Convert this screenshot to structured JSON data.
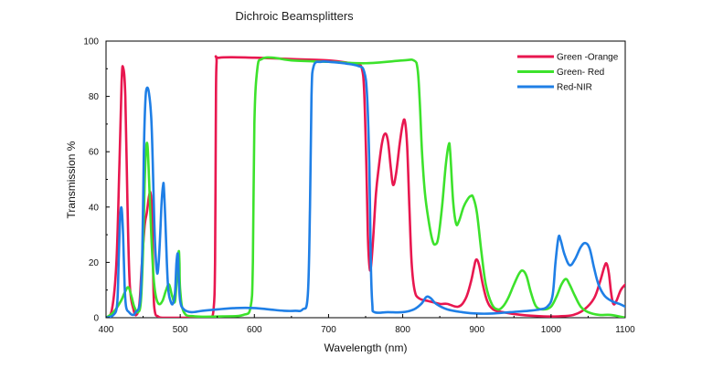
{
  "chart_data": {
    "type": "line",
    "title": "Dichroic Beamsplitters",
    "xlabel": "Wavelength (nm)",
    "ylabel": "Transmission %",
    "xlim": [
      400,
      1100
    ],
    "ylim": [
      0,
      100
    ],
    "xticks": [
      400,
      500,
      600,
      700,
      800,
      900,
      1000,
      1100
    ],
    "yticks": [
      0,
      20,
      40,
      60,
      80,
      100
    ],
    "grid": false,
    "legend_position": "top-right",
    "series": [
      {
        "name": "Green -Orange",
        "color": "#e8174f",
        "points": [
          [
            400,
            0
          ],
          [
            408,
            3
          ],
          [
            414,
            20
          ],
          [
            418,
            55
          ],
          [
            421,
            85
          ],
          [
            423,
            90.5
          ],
          [
            426,
            80
          ],
          [
            429,
            40
          ],
          [
            432,
            12
          ],
          [
            437,
            3
          ],
          [
            441,
            1
          ],
          [
            445,
            5
          ],
          [
            448,
            18
          ],
          [
            452,
            33
          ],
          [
            455,
            38
          ],
          [
            458,
            44
          ],
          [
            460,
            45
          ],
          [
            462,
            38
          ],
          [
            464,
            10
          ],
          [
            466,
            2
          ],
          [
            470,
            0.5
          ],
          [
            476,
            0
          ],
          [
            500,
            0
          ],
          [
            530,
            0
          ],
          [
            540,
            0
          ],
          [
            545,
            3
          ],
          [
            547,
            20
          ],
          [
            548,
            70
          ],
          [
            549,
            92
          ],
          [
            553,
            94
          ],
          [
            600,
            94
          ],
          [
            650,
            93.5
          ],
          [
            700,
            93
          ],
          [
            730,
            92
          ],
          [
            740,
            91.5
          ],
          [
            745,
            90
          ],
          [
            748,
            82
          ],
          [
            751,
            55
          ],
          [
            753,
            30
          ],
          [
            755,
            19
          ],
          [
            757,
            18
          ],
          [
            760,
            28
          ],
          [
            764,
            45
          ],
          [
            768,
            55
          ],
          [
            772,
            63
          ],
          [
            776,
            66.5
          ],
          [
            780,
            64
          ],
          [
            784,
            54
          ],
          [
            787,
            48
          ],
          [
            791,
            52
          ],
          [
            796,
            63
          ],
          [
            800,
            70
          ],
          [
            803,
            71
          ],
          [
            806,
            62
          ],
          [
            809,
            40
          ],
          [
            812,
            20
          ],
          [
            816,
            10
          ],
          [
            822,
            7
          ],
          [
            835,
            6
          ],
          [
            850,
            5
          ],
          [
            860,
            5
          ],
          [
            875,
            4
          ],
          [
            885,
            7
          ],
          [
            892,
            13
          ],
          [
            896,
            18
          ],
          [
            899,
            21
          ],
          [
            903,
            19
          ],
          [
            908,
            12
          ],
          [
            914,
            6
          ],
          [
            922,
            3
          ],
          [
            935,
            2
          ],
          [
            960,
            1
          ],
          [
            990,
            0.5
          ],
          [
            1010,
            0.5
          ],
          [
            1030,
            1
          ],
          [
            1045,
            3
          ],
          [
            1058,
            7
          ],
          [
            1066,
            13
          ],
          [
            1072,
            18.5
          ],
          [
            1075,
            19.5
          ],
          [
            1078,
            16
          ],
          [
            1081,
            9
          ],
          [
            1084,
            5
          ],
          [
            1088,
            6
          ],
          [
            1094,
            10
          ],
          [
            1100,
            12
          ]
        ]
      },
      {
        "name": "Green- Red",
        "color": "#3de22c",
        "points": [
          [
            400,
            0
          ],
          [
            410,
            2
          ],
          [
            420,
            6
          ],
          [
            425,
            9
          ],
          [
            430,
            11
          ],
          [
            434,
            8
          ],
          [
            438,
            4
          ],
          [
            443,
            2
          ],
          [
            447,
            6
          ],
          [
            450,
            25
          ],
          [
            452,
            48
          ],
          [
            454,
            61
          ],
          [
            456,
            62
          ],
          [
            458,
            50
          ],
          [
            461,
            30
          ],
          [
            464,
            15
          ],
          [
            467,
            8
          ],
          [
            471,
            5
          ],
          [
            476,
            6
          ],
          [
            481,
            10
          ],
          [
            485,
            12
          ],
          [
            489,
            8
          ],
          [
            493,
            6
          ],
          [
            496,
            17
          ],
          [
            498,
            24
          ],
          [
            499,
            20
          ],
          [
            500,
            10
          ],
          [
            505,
            2
          ],
          [
            520,
            0.5
          ],
          [
            560,
            0.5
          ],
          [
            585,
            1
          ],
          [
            595,
            4
          ],
          [
            598,
            20
          ],
          [
            600,
            70
          ],
          [
            604,
            90
          ],
          [
            610,
            93.5
          ],
          [
            625,
            94
          ],
          [
            650,
            93
          ],
          [
            700,
            92.5
          ],
          [
            750,
            92
          ],
          [
            800,
            93
          ],
          [
            815,
            93
          ],
          [
            820,
            90
          ],
          [
            823,
            78
          ],
          [
            826,
            60
          ],
          [
            830,
            45
          ],
          [
            835,
            35
          ],
          [
            840,
            28
          ],
          [
            844,
            26.5
          ],
          [
            848,
            29
          ],
          [
            853,
            40
          ],
          [
            858,
            55
          ],
          [
            862,
            62.5
          ],
          [
            864,
            60
          ],
          [
            868,
            42
          ],
          [
            872,
            34
          ],
          [
            876,
            35
          ],
          [
            882,
            40
          ],
          [
            888,
            43
          ],
          [
            892,
            44
          ],
          [
            895,
            43.5
          ],
          [
            900,
            38
          ],
          [
            906,
            24
          ],
          [
            912,
            12
          ],
          [
            920,
            5
          ],
          [
            928,
            3
          ],
          [
            935,
            4
          ],
          [
            942,
            7
          ],
          [
            950,
            12
          ],
          [
            957,
            16
          ],
          [
            962,
            17
          ],
          [
            967,
            15
          ],
          [
            973,
            9
          ],
          [
            980,
            4
          ],
          [
            990,
            3
          ],
          [
            1000,
            4
          ],
          [
            1008,
            8
          ],
          [
            1014,
            12
          ],
          [
            1020,
            14
          ],
          [
            1025,
            12
          ],
          [
            1032,
            8
          ],
          [
            1040,
            4
          ],
          [
            1050,
            2
          ],
          [
            1065,
            1
          ],
          [
            1080,
            1
          ],
          [
            1100,
            0
          ]
        ]
      },
      {
        "name": "Red-NIR",
        "color": "#1f7fe6",
        "points": [
          [
            400,
            0
          ],
          [
            410,
            1
          ],
          [
            415,
            5
          ],
          [
            417,
            20
          ],
          [
            419,
            36
          ],
          [
            421,
            39.5
          ],
          [
            423,
            30
          ],
          [
            425,
            12
          ],
          [
            427,
            4
          ],
          [
            431,
            2
          ],
          [
            436,
            1
          ],
          [
            440,
            2
          ],
          [
            446,
            6
          ],
          [
            449,
            25
          ],
          [
            451,
            60
          ],
          [
            453,
            78
          ],
          [
            455,
            83
          ],
          [
            458,
            81
          ],
          [
            461,
            72
          ],
          [
            463,
            56
          ],
          [
            465,
            35
          ],
          [
            467,
            22
          ],
          [
            469,
            16
          ],
          [
            471,
            20
          ],
          [
            473,
            30
          ],
          [
            475,
            42
          ],
          [
            477,
            48
          ],
          [
            478,
            47
          ],
          [
            480,
            35
          ],
          [
            482,
            20
          ],
          [
            484,
            10
          ],
          [
            487,
            6
          ],
          [
            490,
            5
          ],
          [
            493,
            9
          ],
          [
            495,
            20
          ],
          [
            497,
            23
          ],
          [
            498,
            15
          ],
          [
            500,
            6
          ],
          [
            505,
            3
          ],
          [
            515,
            2
          ],
          [
            530,
            2.5
          ],
          [
            550,
            3
          ],
          [
            575,
            3.5
          ],
          [
            600,
            3.5
          ],
          [
            620,
            3
          ],
          [
            640,
            2.5
          ],
          [
            655,
            2.5
          ],
          [
            665,
            3
          ],
          [
            672,
            8
          ],
          [
            675,
            40
          ],
          [
            677,
            80
          ],
          [
            680,
            91
          ],
          [
            690,
            92.5
          ],
          [
            700,
            92.5
          ],
          [
            720,
            92
          ],
          [
            740,
            91
          ],
          [
            748,
            89
          ],
          [
            752,
            80
          ],
          [
            755,
            55
          ],
          [
            757,
            20
          ],
          [
            759,
            5
          ],
          [
            762,
            2
          ],
          [
            780,
            2
          ],
          [
            800,
            2
          ],
          [
            815,
            3
          ],
          [
            825,
            5
          ],
          [
            832,
            7.5
          ],
          [
            838,
            7
          ],
          [
            845,
            5
          ],
          [
            860,
            3
          ],
          [
            880,
            2
          ],
          [
            900,
            1.5
          ],
          [
            920,
            1.5
          ],
          [
            945,
            2
          ],
          [
            970,
            2.5
          ],
          [
            985,
            3
          ],
          [
            995,
            4
          ],
          [
            1002,
            8
          ],
          [
            1006,
            20
          ],
          [
            1010,
            29
          ],
          [
            1013,
            28
          ],
          [
            1018,
            23
          ],
          [
            1025,
            19
          ],
          [
            1032,
            21
          ],
          [
            1040,
            25.5
          ],
          [
            1046,
            27
          ],
          [
            1052,
            25
          ],
          [
            1058,
            18
          ],
          [
            1064,
            12
          ],
          [
            1072,
            8
          ],
          [
            1082,
            6
          ],
          [
            1092,
            5
          ],
          [
            1100,
            4
          ]
        ]
      }
    ]
  }
}
